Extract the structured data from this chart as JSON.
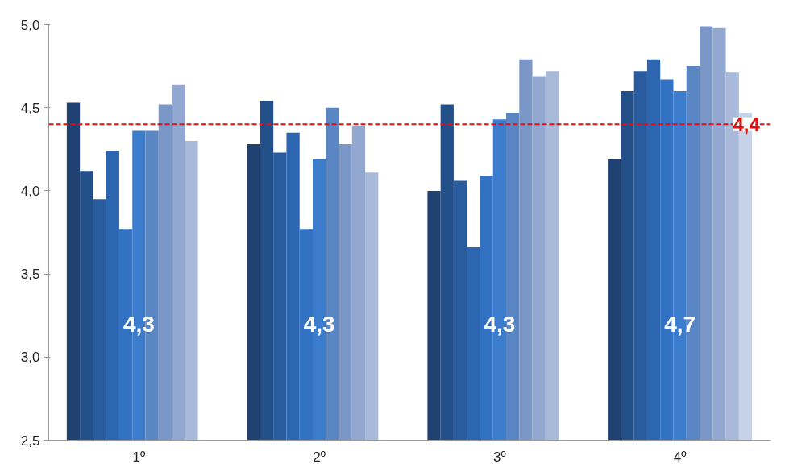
{
  "chart_data": {
    "type": "bar",
    "categories": [
      "1º",
      "2º",
      "3º",
      "4º"
    ],
    "series": [
      {
        "color": "#1f4272",
        "values": [
          4.53,
          4.28,
          4.0,
          4.19
        ]
      },
      {
        "color": "#24508a",
        "values": [
          4.12,
          4.54,
          4.52,
          4.6
        ]
      },
      {
        "color": "#295c9e",
        "values": [
          3.95,
          4.23,
          4.06,
          4.72
        ]
      },
      {
        "color": "#2d66b0",
        "values": [
          4.24,
          4.35,
          3.66,
          4.79
        ]
      },
      {
        "color": "#3372c2",
        "values": [
          3.77,
          3.77,
          4.09,
          4.67
        ]
      },
      {
        "color": "#3b7dcc",
        "values": [
          4.36,
          4.19,
          4.43,
          4.6
        ]
      },
      {
        "color": "#5b86c4",
        "values": [
          4.36,
          4.5,
          4.47,
          4.75
        ]
      },
      {
        "color": "#7b97c8",
        "values": [
          4.52,
          4.28,
          4.79,
          4.99
        ]
      },
      {
        "color": "#93a8d0",
        "values": [
          4.64,
          4.39,
          4.69,
          4.98
        ]
      },
      {
        "color": "#a9b9da",
        "values": [
          4.3,
          4.11,
          4.72,
          4.71
        ]
      },
      {
        "color": "#c6d2e8",
        "values": [
          null,
          null,
          null,
          4.47
        ]
      }
    ],
    "ylim": [
      2.5,
      5.0
    ],
    "yticks": [
      {
        "value": 2.5,
        "label": "2,5"
      },
      {
        "value": 3.0,
        "label": "3,0"
      },
      {
        "value": 3.5,
        "label": "3,5"
      },
      {
        "value": 4.0,
        "label": "4,0"
      },
      {
        "value": 4.5,
        "label": "4,5"
      },
      {
        "value": 5.0,
        "label": "5,0"
      }
    ],
    "ref_lines": [
      {
        "axis": "y",
        "value": 4.4,
        "label": "4,4",
        "color": "#e01010",
        "line_style": "dashed"
      }
    ],
    "annotations": [
      "4,3",
      "4,3",
      "4,3",
      "4,7"
    ],
    "grid": false
  }
}
